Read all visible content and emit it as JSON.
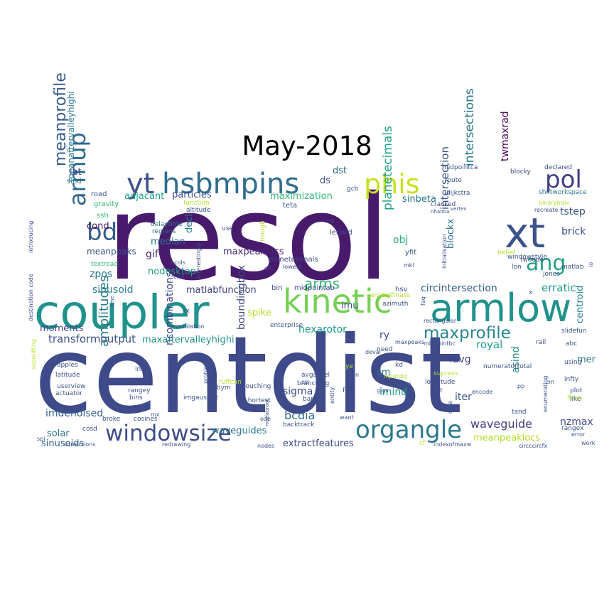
{
  "title": "May-2018",
  "words": [
    {
      "text": "resol",
      "color": "#481a6c"
    },
    {
      "text": "centdist",
      "color": "#3e4a89"
    },
    {
      "text": "coupler",
      "color": "#20928c"
    },
    {
      "text": "armlow",
      "color": "#20928c"
    },
    {
      "text": "kinetic",
      "color": "#75d054"
    },
    {
      "text": "hsbmpins",
      "color": "#2f6c8e"
    },
    {
      "text": "yt",
      "color": "#3b518b"
    },
    {
      "text": "phis",
      "color": "#c8e020"
    },
    {
      "text": "xt",
      "color": "#3b528b"
    },
    {
      "text": "windowsize",
      "color": "#3e4c8a"
    },
    {
      "text": "organgle",
      "color": "#2a788e"
    },
    {
      "text": "bd",
      "color": "#355f8d"
    },
    {
      "text": "pol",
      "color": "#433e85"
    },
    {
      "text": "ang",
      "color": "#1fa187"
    },
    {
      "text": "armup",
      "color": "#31678e"
    },
    {
      "text": "maxprofile",
      "color": "#25858e"
    },
    {
      "text": "arms",
      "color": "#35b779"
    },
    {
      "text": "meanprofile",
      "color": "#365c8d"
    },
    {
      "text": "amplitudes",
      "color": "#2a788e"
    },
    {
      "text": "transformoutput",
      "color": "#3b528b"
    },
    {
      "text": "maxaftervalleyhighi",
      "color": "#20928c"
    },
    {
      "text": "sinusoid",
      "color": "#277f8e"
    },
    {
      "text": "matlabfunction",
      "color": "#424086"
    },
    {
      "text": "circintersection",
      "color": "#355e8d"
    },
    {
      "text": "hexarotor",
      "color": "#1f998a"
    },
    {
      "text": "planetecimals",
      "color": "#1fa187"
    },
    {
      "text": "intersections",
      "color": "#2a788e"
    },
    {
      "text": "intersection",
      "color": "#3b528b"
    },
    {
      "text": "twmaxrad",
      "color": "#440154"
    },
    {
      "text": "centroid",
      "color": "#277f8e"
    },
    {
      "text": "meanaftervalleyhighi",
      "color": "#2a788e"
    },
    {
      "text": "ncombinations",
      "color": "#3e4989"
    },
    {
      "text": "boundingbox",
      "color": "#3f4788"
    },
    {
      "text": "waveguide",
      "color": "#433e85"
    },
    {
      "text": "waveguides",
      "color": "#2a788e"
    },
    {
      "text": "extractfeatures",
      "color": "#3e4a89"
    },
    {
      "text": "sinusoids",
      "color": "#32658e"
    },
    {
      "text": "imdenoised",
      "color": "#355f8d"
    },
    {
      "text": "meanpeaklocs",
      "color": "#b5de2b"
    },
    {
      "text": "maxpeaklocs",
      "color": "#482878"
    },
    {
      "text": "nodesktop",
      "color": "#1f9e89"
    },
    {
      "text": "maximization",
      "color": "#35b779"
    },
    {
      "text": "particles",
      "color": "#3b528b"
    },
    {
      "text": "adjacant",
      "color": "#1fa187"
    },
    {
      "text": "median",
      "color": "#2c728e"
    },
    {
      "text": "meanpeaks",
      "color": "#3b528b"
    },
    {
      "text": "moments",
      "color": "#414487"
    },
    {
      "text": "sinbeta",
      "color": "#2a788e"
    },
    {
      "text": "tstep",
      "color": "#3b528b"
    },
    {
      "text": "brick",
      "color": "#3e4a89"
    },
    {
      "text": "erratic",
      "color": "#1f9a8a"
    },
    {
      "text": "royal",
      "color": "#1fa088"
    },
    {
      "text": "favg",
      "color": "#433e85"
    },
    {
      "text": "asind",
      "color": "#238a8d"
    },
    {
      "text": "sigma",
      "color": "#3e4989"
    },
    {
      "text": "bcdia",
      "color": "#31688e"
    },
    {
      "text": "imind",
      "color": "#1f988b"
    },
    {
      "text": "iter",
      "color": "#3b528b"
    },
    {
      "text": "nzmax",
      "color": "#3e4a89"
    },
    {
      "text": "solar",
      "color": "#2d708e"
    },
    {
      "text": "zpos",
      "color": "#2a788e"
    },
    {
      "text": "gifv",
      "color": "#482475"
    },
    {
      "text": "cond",
      "color": "#471365"
    },
    {
      "text": "lat",
      "color": "#3e4c8a"
    },
    {
      "text": "decl",
      "color": "#2a788e"
    },
    {
      "text": "obj",
      "color": "#28ae80"
    },
    {
      "text": "blockx",
      "color": "#2c728e"
    },
    {
      "text": "spike",
      "color": "#b5de2b"
    },
    {
      "text": "imu",
      "color": "#3b528b"
    },
    {
      "text": "sm",
      "color": "#2a788e"
    },
    {
      "text": "ry",
      "color": "#3e4a89"
    },
    {
      "text": "ds",
      "color": "#3e4a89"
    },
    {
      "text": "dst",
      "color": "#31688e"
    },
    {
      "text": "mer",
      "color": "#2a788e"
    },
    {
      "text": "road",
      "color": "#3b528b"
    },
    {
      "text": "gravity",
      "color": "#32b67a"
    },
    {
      "text": "ssh",
      "color": "#35b779"
    },
    {
      "text": "sind",
      "color": "#2a788e"
    },
    {
      "text": "textread",
      "color": "#35b779"
    },
    {
      "text": "function",
      "color": "#b5de2b"
    },
    {
      "text": "altitude",
      "color": "#3b528b"
    },
    {
      "text": "delaytime",
      "color": "#2a788e"
    },
    {
      "text": "regions",
      "color": "#31688e"
    },
    {
      "text": "use",
      "color": "#3b528b"
    },
    {
      "text": "trough",
      "color": "#b5de2b"
    },
    {
      "text": "teta",
      "color": "#3b528b"
    },
    {
      "text": "ro",
      "color": "#3b528b"
    },
    {
      "text": "lenard",
      "color": "#3e4a89"
    },
    {
      "text": "planetesimals",
      "color": "#3e4a89"
    },
    {
      "text": "lowest",
      "color": "#3e4a89"
    },
    {
      "text": "dll",
      "color": "#3e4a89"
    },
    {
      "text": "bin",
      "color": "#3b528b"
    },
    {
      "text": "midpointab",
      "color": "#3e4a89"
    },
    {
      "text": "hsv",
      "color": "#3b528b"
    },
    {
      "text": "yfit",
      "color": "#3b528b"
    },
    {
      "text": "mkl",
      "color": "#3e4a89"
    },
    {
      "text": "gcb",
      "color": "#3b528b"
    },
    {
      "text": "route",
      "color": "#3b528b"
    },
    {
      "text": "dijkstra",
      "color": "#3b528b"
    },
    {
      "text": "cracked",
      "color": "#3e4a89"
    },
    {
      "text": "midpointca",
      "color": "#3b528b"
    },
    {
      "text": "blocky",
      "color": "#3e4a89"
    },
    {
      "text": "declared",
      "color": "#3b528b"
    },
    {
      "text": "shiftworkspace",
      "color": "#2a788e"
    },
    {
      "text": "binarytrain",
      "color": "#b5de2b"
    },
    {
      "text": "recreate",
      "color": "#3b528b"
    },
    {
      "text": "windowstyle",
      "color": "#3b528b"
    },
    {
      "text": "matlab",
      "color": "#3b528b"
    },
    {
      "text": "belief",
      "color": "#b5de2b"
    },
    {
      "text": "twoode",
      "color": "#3b528b"
    },
    {
      "text": "lon",
      "color": "#3b528b"
    },
    {
      "text": "jones",
      "color": "#3b528b"
    },
    {
      "text": "azimuth",
      "color": "#3b528b"
    },
    {
      "text": "centerofmass",
      "color": "#b5de2b"
    },
    {
      "text": "enterprise",
      "color": "#3b528b"
    },
    {
      "text": "modulation",
      "color": "#3b528b"
    },
    {
      "text": "deval",
      "color": "#3b528b"
    },
    {
      "text": "need",
      "color": "#3b528b"
    },
    {
      "text": "maxpeaks",
      "color": "#3b528b"
    },
    {
      "text": "midpointbc",
      "color": "#3b528b"
    },
    {
      "text": "rail",
      "color": "#3b528b"
    },
    {
      "text": "slidefun",
      "color": "#3b528b"
    },
    {
      "text": "abc",
      "color": "#3b528b"
    },
    {
      "text": "using",
      "color": "#3b528b"
    },
    {
      "text": "infty",
      "color": "#3b528b"
    },
    {
      "text": "plot",
      "color": "#3b528b"
    },
    {
      "text": "like",
      "color": "#3b528b"
    },
    {
      "text": "rangex",
      "color": "#3b528b"
    },
    {
      "text": "work",
      "color": "#3b528b"
    },
    {
      "text": "numeratortotal",
      "color": "#3b528b"
    },
    {
      "text": "supress",
      "color": "#b5de2b"
    },
    {
      "text": "longitude",
      "color": "#3b528b"
    },
    {
      "text": "bot",
      "color": "#3b528b"
    },
    {
      "text": "encode",
      "color": "#3b528b"
    },
    {
      "text": "tand",
      "color": "#3b528b"
    },
    {
      "text": "enumerating",
      "color": "#3b528b"
    },
    {
      "text": "rectangular",
      "color": "#3b528b"
    },
    {
      "text": "indexofmaxw",
      "color": "#3b528b"
    },
    {
      "text": "circccircfx",
      "color": "#3b528b"
    },
    {
      "text": "cf",
      "color": "#b5de2b"
    },
    {
      "text": "kd",
      "color": "#3b528b"
    },
    {
      "text": "ye",
      "color": "#b5de2b"
    },
    {
      "text": "inputdlg",
      "color": "#b5de2b"
    },
    {
      "text": "ships",
      "color": "#3b528b"
    },
    {
      "text": "fish",
      "color": "#3b528b"
    },
    {
      "text": "entity",
      "color": "#3b528b"
    },
    {
      "text": "branching",
      "color": "#3b528b"
    },
    {
      "text": "avgaccel",
      "color": "#3b528b"
    },
    {
      "text": "ols",
      "color": "#3b528b"
    },
    {
      "text": "bar",
      "color": "#3b528b"
    },
    {
      "text": "backtrack",
      "color": "#3b528b"
    },
    {
      "text": "touching",
      "color": "#3b528b"
    },
    {
      "text": "shortest",
      "color": "#3b528b"
    },
    {
      "text": "ode",
      "color": "#3b528b"
    },
    {
      "text": "nodes",
      "color": "#3b528b"
    },
    {
      "text": "imgaussfilt",
      "color": "#3b528b"
    },
    {
      "text": "fbbym",
      "color": "#3b528b"
    },
    {
      "text": "ruffcan",
      "color": "#b5de2b"
    },
    {
      "text": "problem",
      "color": "#3b528b"
    },
    {
      "text": "inf",
      "color": "#3b528b"
    },
    {
      "text": "rangey",
      "color": "#3b528b"
    },
    {
      "text": "bins",
      "color": "#3b528b"
    },
    {
      "text": "cosines",
      "color": "#3b528b"
    },
    {
      "text": "broke",
      "color": "#3b528b"
    },
    {
      "text": "cosd",
      "color": "#3b528b"
    },
    {
      "text": "corrections",
      "color": "#3b528b"
    },
    {
      "text": "redrawing",
      "color": "#3b528b"
    },
    {
      "text": "apples",
      "color": "#3b528b"
    },
    {
      "text": "latitude",
      "color": "#3b528b"
    },
    {
      "text": "userview",
      "color": "#3b528b"
    },
    {
      "text": "actuator",
      "color": "#3b528b"
    },
    {
      "text": "spi",
      "color": "#3b528b"
    },
    {
      "text": "submitting",
      "color": "#b5de2b"
    },
    {
      "text": "destination code",
      "color": "#3b528b"
    },
    {
      "text": "introducing",
      "color": "#3b528b"
    },
    {
      "text": "time",
      "color": "#3b528b"
    },
    {
      "text": "ncols",
      "color": "#3b528b"
    },
    {
      "text": "interestingly",
      "color": "#3b528b"
    },
    {
      "text": "mx",
      "color": "#3b528b"
    },
    {
      "text": "end",
      "color": "#3b528b"
    },
    {
      "text": "rx",
      "color": "#3b528b"
    },
    {
      "text": "faq",
      "color": "#3b528b"
    },
    {
      "text": "initialisation",
      "color": "#3b528b"
    },
    {
      "text": "zm",
      "color": "#3b528b"
    },
    {
      "text": "finals",
      "color": "#b5de2b"
    },
    {
      "text": "error",
      "color": "#3b528b"
    },
    {
      "text": "io",
      "color": "#3b528b"
    },
    {
      "text": "want",
      "color": "#3b528b"
    },
    {
      "text": "data",
      "color": "#3b528b"
    },
    {
      "text": "matlabroot",
      "color": "#3b528b"
    },
    {
      "text": "gigs",
      "color": "#3b528b"
    },
    {
      "text": "pp",
      "color": "#3b528b"
    },
    {
      "text": "vertex",
      "color": "#3b528b"
    },
    {
      "text": "nhanba",
      "color": "#3b528b"
    },
    {
      "text": "n",
      "color": "#3b528b"
    },
    {
      "text": "v",
      "color": "#3b528b"
    },
    {
      "text": "x",
      "color": "#3b528b"
    }
  ]
}
